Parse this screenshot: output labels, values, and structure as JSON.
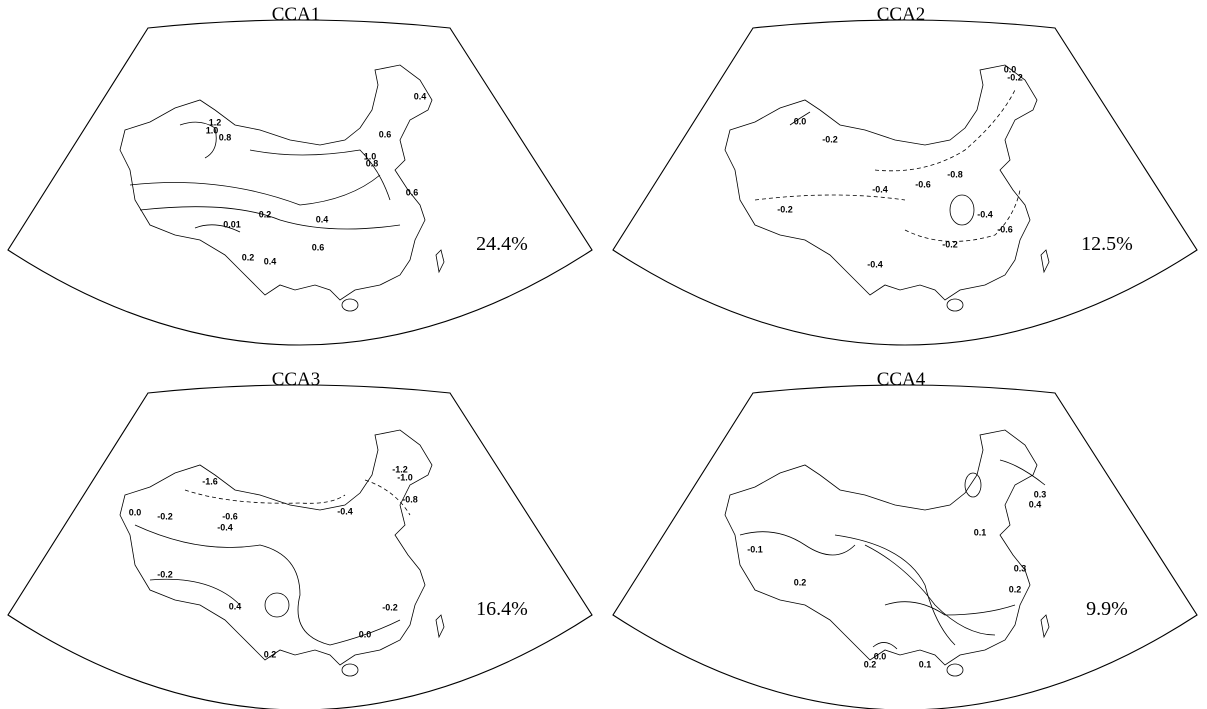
{
  "panels": [
    {
      "title": "CCA1",
      "variance": "24.4%",
      "contour_labels": [
        "1.2",
        "1.0",
        "0.8",
        "1.0",
        "0.8",
        "0.6",
        "0.6",
        "0.4",
        "0.4",
        "0.2",
        "0.01",
        "0.6",
        "0.2",
        "0.4"
      ]
    },
    {
      "title": "CCA2",
      "variance": "12.5%",
      "contour_labels": [
        "-0.2",
        "0.0",
        "-0.2",
        "-0.4",
        "-0.6",
        "-0.8",
        "-0.4",
        "-0.2",
        "-0.6",
        "-0.4",
        "-0.2",
        "0.0"
      ]
    },
    {
      "title": "CCA3",
      "variance": "16.4%",
      "contour_labels": [
        "0.0",
        "-0.2",
        "-1.6",
        "-0.6",
        "-0.4",
        "-1.2",
        "-1.0",
        "-0.8",
        "-0.4",
        "-0.2",
        "0.4",
        "0.2",
        "0.0",
        "-0.2"
      ]
    },
    {
      "title": "CCA4",
      "variance": "9.9%",
      "contour_labels": [
        "-0.1",
        "0.2",
        "0.1",
        "0.2",
        "0.3",
        "0.0",
        "0.2",
        "0.1",
        "0.4",
        "0.3"
      ]
    }
  ]
}
